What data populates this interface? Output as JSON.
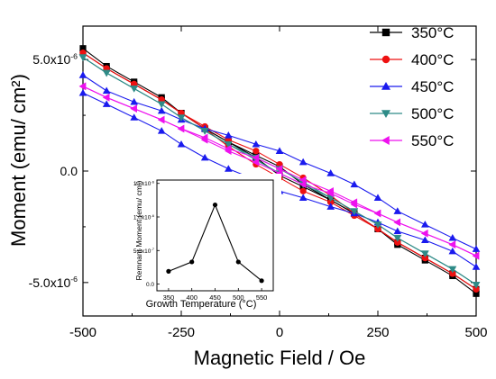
{
  "chart_data": [
    {
      "type": "line",
      "xlabel": "Magnetic Field / Oe",
      "ylabel": "Moment (emu/ cm²)",
      "xlim": [
        -500,
        500
      ],
      "ylim": [
        -6.5e-06,
        6.5e-06
      ],
      "x_ticks": [
        -500,
        -250,
        0,
        250,
        500
      ],
      "x_tick_labels": [
        "-500",
        "-250",
        "0",
        "250",
        "500"
      ],
      "y_ticks": [
        5e-06,
        0,
        -5e-06
      ],
      "y_tick_labels": [
        {
          "mantissa": "5.0x10",
          "exponent": "-6"
        },
        {
          "mantissa": "0.0",
          "exponent": ""
        },
        {
          "mantissa": "-5.0x10",
          "exponent": "-6"
        }
      ],
      "legend_position": "top-right",
      "grid": false,
      "series": [
        {
          "name": "350°C",
          "color": "#000000",
          "marker": "square",
          "x": [
            -500,
            -440,
            -370,
            -300,
            -250,
            -190,
            -130,
            -60,
            0,
            60,
            130,
            190,
            250,
            300,
            370,
            440,
            500
          ],
          "y_descending": [
            5.5e-06,
            4.7e-06,
            4e-06,
            3.3e-06,
            2.6e-06,
            1.9e-06,
            1.3e-06,
            7e-07,
            2e-07,
            -6e-07,
            -1.3e-06,
            -1.9e-06,
            -2.6e-06,
            -3.2e-06,
            -3.9e-06,
            -4.6e-06,
            -5.3e-06
          ],
          "y_ascending": [
            5.3e-06,
            4.6e-06,
            3.9e-06,
            3.2e-06,
            2.6e-06,
            1.9e-06,
            1.3e-06,
            6e-07,
            -2e-07,
            -7e-07,
            -1.3e-06,
            -1.9e-06,
            -2.6e-06,
            -3.3e-06,
            -4e-06,
            -4.7e-06,
            -5.5e-06
          ]
        },
        {
          "name": "400°C",
          "color": "#ee1111",
          "marker": "circle",
          "x": [
            -500,
            -440,
            -370,
            -300,
            -250,
            -190,
            -130,
            -60,
            0,
            60,
            130,
            190,
            250,
            300,
            370,
            440,
            500
          ],
          "y_descending": [
            5.3e-06,
            4.6e-06,
            3.9e-06,
            3.2e-06,
            2.6e-06,
            2e-06,
            1.4e-06,
            9e-07,
            3e-07,
            -3e-07,
            -1.1e-06,
            -1.9e-06,
            -2.6e-06,
            -3.2e-06,
            -3.9e-06,
            -4.6e-06,
            -5.3e-06
          ],
          "y_ascending": [
            5.3e-06,
            4.6e-06,
            3.9e-06,
            3.2e-06,
            2.6e-06,
            1.9e-06,
            1.1e-06,
            3e-07,
            -3e-07,
            -9e-07,
            -1.4e-06,
            -2e-06,
            -2.6e-06,
            -3.2e-06,
            -3.9e-06,
            -4.6e-06,
            -5.3e-06
          ]
        },
        {
          "name": "450°C",
          "color": "#1a1aee",
          "marker": "triangle-up",
          "x": [
            -500,
            -440,
            -370,
            -300,
            -250,
            -190,
            -130,
            -60,
            0,
            60,
            130,
            190,
            250,
            300,
            370,
            440,
            500
          ],
          "y_descending": [
            4.3e-06,
            3.6e-06,
            3.1e-06,
            2.7e-06,
            2.3e-06,
            1.9e-06,
            1.6e-06,
            1.2e-06,
            9e-07,
            4e-07,
            -1e-07,
            -6e-07,
            -1.2e-06,
            -1.8e-06,
            -2.4e-06,
            -3e-06,
            -3.5e-06
          ],
          "y_ascending": [
            3.5e-06,
            3e-06,
            2.4e-06,
            1.8e-06,
            1.2e-06,
            6e-07,
            1e-07,
            -4e-07,
            -9e-07,
            -1.2e-06,
            -1.6e-06,
            -1.9e-06,
            -2.3e-06,
            -2.7e-06,
            -3.1e-06,
            -3.6e-06,
            -4.3e-06
          ]
        },
        {
          "name": "500°C",
          "color": "#2e8b87",
          "marker": "triangle-down",
          "x": [
            -500,
            -440,
            -370,
            -300,
            -250,
            -190,
            -130,
            -60,
            0,
            60,
            130,
            190,
            250,
            300,
            370,
            440,
            500
          ],
          "y_descending": [
            5.1e-06,
            4.4e-06,
            3.7e-06,
            3e-06,
            2.4e-06,
            1.8e-06,
            1.2e-06,
            6e-07,
            1e-07,
            -5e-07,
            -1.2e-06,
            -1.8e-06,
            -2.4e-06,
            -3e-06,
            -3.7e-06,
            -4.4e-06,
            -5.1e-06
          ],
          "y_ascending": [
            5.1e-06,
            4.4e-06,
            3.7e-06,
            3e-06,
            2.4e-06,
            1.8e-06,
            1.2e-06,
            5e-07,
            -1e-07,
            -6e-07,
            -1.2e-06,
            -1.8e-06,
            -2.4e-06,
            -3e-06,
            -3.7e-06,
            -4.4e-06,
            -5.1e-06
          ]
        },
        {
          "name": "550°C",
          "color": "#ee11ee",
          "marker": "triangle-left",
          "x": [
            -500,
            -440,
            -370,
            -300,
            -250,
            -190,
            -130,
            -60,
            0,
            60,
            130,
            190,
            250,
            300,
            370,
            440,
            500
          ],
          "y_descending": [
            3.8e-06,
            3.3e-06,
            2.8e-06,
            2.3e-06,
            1.9e-06,
            1.5e-06,
            1e-06,
            6e-07,
            1e-07,
            -4e-07,
            -9e-07,
            -1.4e-06,
            -1.9e-06,
            -2.3e-06,
            -2.8e-06,
            -3.3e-06,
            -3.8e-06
          ],
          "y_ascending": [
            3.8e-06,
            3.3e-06,
            2.8e-06,
            2.3e-06,
            1.9e-06,
            1.4e-06,
            9e-07,
            4e-07,
            -1e-07,
            -6e-07,
            -1e-06,
            -1.5e-06,
            -1.9e-06,
            -2.3e-06,
            -2.8e-06,
            -3.3e-06,
            -3.8e-06
          ]
        }
      ]
    },
    {
      "type": "line",
      "inset": true,
      "xlabel": "Growth Temperature (°C)",
      "ylabel": "Remnant Moment (emu/ cm²)",
      "categories": [
        350,
        400,
        450,
        500,
        550
      ],
      "values": [
        1.9e-07,
        3.3e-07,
        1.18e-06,
        3.3e-07,
        5e-08
      ],
      "xlim": [
        325,
        575
      ],
      "ylim": [
        -1e-07,
        1.55e-06
      ],
      "x_tick_labels": [
        "350",
        "400",
        "450",
        "500",
        "550"
      ],
      "y_ticks": [
        0,
        5e-07,
        1e-06,
        1.5e-06
      ],
      "y_tick_labels": [
        {
          "mantissa": "0.0",
          "exponent": ""
        },
        {
          "mantissa": "5.0x10",
          "exponent": "-7"
        },
        {
          "mantissa": "1.0x10",
          "exponent": "-6"
        },
        {
          "mantissa": "1.5x10",
          "exponent": "-6"
        }
      ],
      "color": "#000000",
      "marker": "circle"
    }
  ]
}
